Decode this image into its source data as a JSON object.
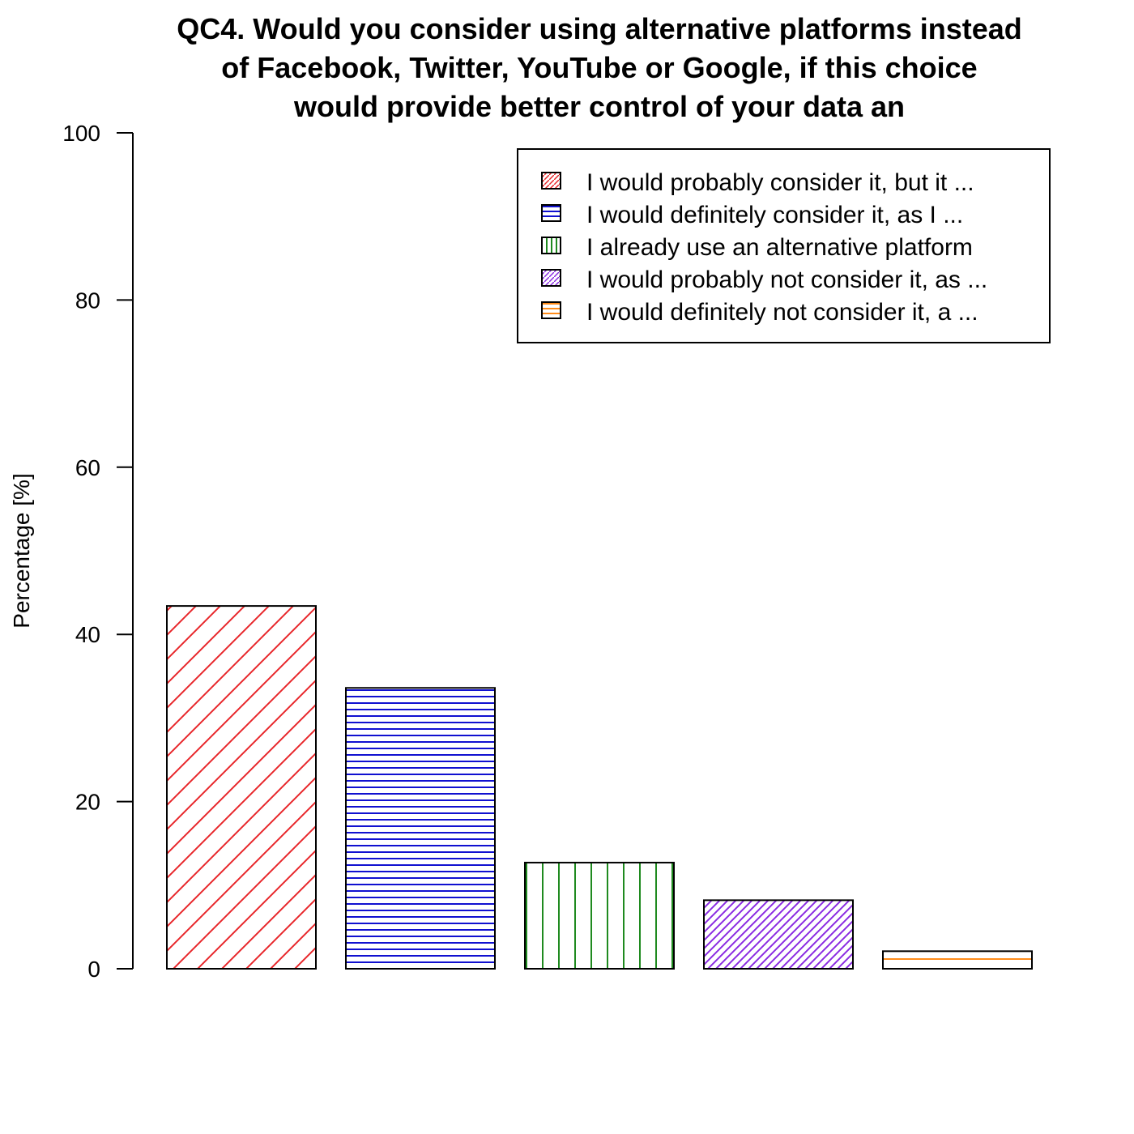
{
  "chart_data": {
    "type": "bar",
    "title_lines": [
      "QC4. Would you consider using alternative platforms instead",
      "of Facebook, Twitter, YouTube or Google, if this choice",
      "would provide better control of your data an"
    ],
    "ylabel": "Percentage [%]",
    "xlabel": "",
    "ylim": [
      0,
      100
    ],
    "yticks": [
      0,
      20,
      40,
      60,
      80,
      100
    ],
    "legend_position": "top-right",
    "categories": [
      "I would probably consider it, but it  ...",
      "I would definitely consider it, as I  ...",
      "I already use an alternative platform",
      "I would probably not consider it, as  ...",
      "I would definitely not consider it, a ..."
    ],
    "values": [
      43.4,
      33.6,
      12.7,
      8.2,
      2.1
    ],
    "colors": [
      "#e8262a",
      "#1010d0",
      "#1f8a1f",
      "#8a2be2",
      "#ff8c1a"
    ],
    "patterns": [
      "diagonal",
      "horizontal",
      "vertical",
      "diagonal-dense",
      "horizontal-sparse"
    ]
  }
}
